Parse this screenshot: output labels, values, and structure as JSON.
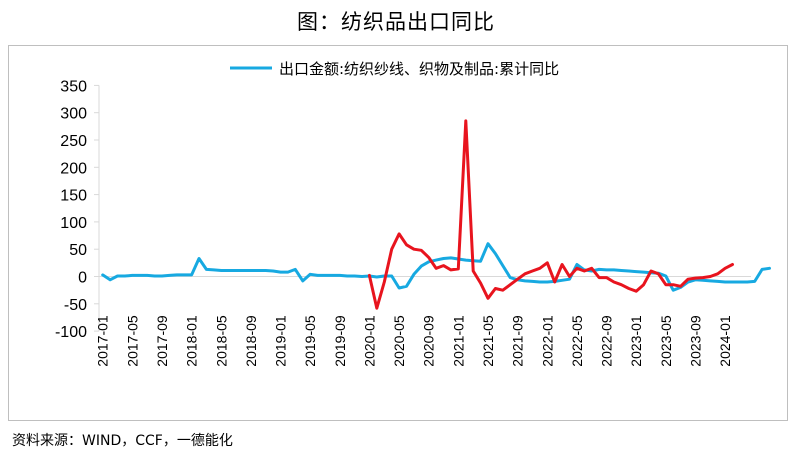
{
  "header": {
    "title": "图：纺织品出口同比"
  },
  "footer": {
    "source": "资料来源：WIND，CCF，一德能化"
  },
  "colors": {
    "series_blue": "#17A9E1",
    "series_red": "#E8141E",
    "axis": "#d9d9d9"
  },
  "chart_data": {
    "type": "line",
    "title": "图：纺织品出口同比",
    "xlabel": "",
    "ylabel": "",
    "ylim": [
      -100,
      350
    ],
    "yticks": [
      350,
      300,
      250,
      200,
      150,
      100,
      50,
      0,
      -50,
      -100
    ],
    "grid": false,
    "legend_position": "top",
    "x_tick_labels": [
      "2017-01",
      "2017-05",
      "2017-09",
      "2018-01",
      "2018-05",
      "2018-09",
      "2019-01",
      "2019-05",
      "2019-09",
      "2020-01",
      "2020-05",
      "2020-09",
      "2021-01",
      "2021-05",
      "2021-09",
      "2022-01",
      "2022-05",
      "2022-09",
      "2023-01",
      "2023-05",
      "2023-09",
      "2024-01"
    ],
    "series": [
      {
        "name": "出口金额:纺织纱线、织物及制品:累计同比",
        "start": "2017-01",
        "values": [
          3,
          -6,
          1,
          1,
          2,
          2,
          2,
          1,
          1,
          2,
          3,
          3,
          3,
          33,
          13,
          12,
          11,
          11,
          11,
          11,
          11,
          11,
          11,
          10,
          8,
          8,
          13,
          -8,
          4,
          2,
          2,
          2,
          2,
          1,
          1,
          0,
          1,
          -1,
          1,
          1,
          -21,
          -18,
          4,
          19,
          27,
          30,
          33,
          34,
          32,
          30,
          29,
          28,
          60,
          42,
          20,
          -2,
          -6,
          -8,
          -9,
          -10,
          -10,
          -9,
          -7,
          -5,
          22,
          12,
          10,
          13,
          12,
          12,
          11,
          10,
          9,
          8,
          7,
          6,
          1,
          -25,
          -20,
          -10,
          -6,
          -7,
          -8,
          -9,
          -10,
          -10,
          -10,
          -10,
          -9,
          13,
          15
        ]
      },
      {
        "name": "",
        "start": "2020-01",
        "values": [
          2,
          -58,
          -10,
          50,
          78,
          58,
          50,
          48,
          35,
          15,
          20,
          12,
          14,
          285,
          10,
          -12,
          -40,
          -22,
          -25,
          -15,
          -5,
          5,
          10,
          15,
          25,
          -10,
          22,
          0,
          15,
          10,
          15,
          -2,
          -2,
          -10,
          -15,
          -22,
          -27,
          -15,
          10,
          5,
          -15,
          -15,
          -18,
          -5,
          -3,
          -2,
          0,
          5,
          15,
          22
        ]
      }
    ]
  }
}
